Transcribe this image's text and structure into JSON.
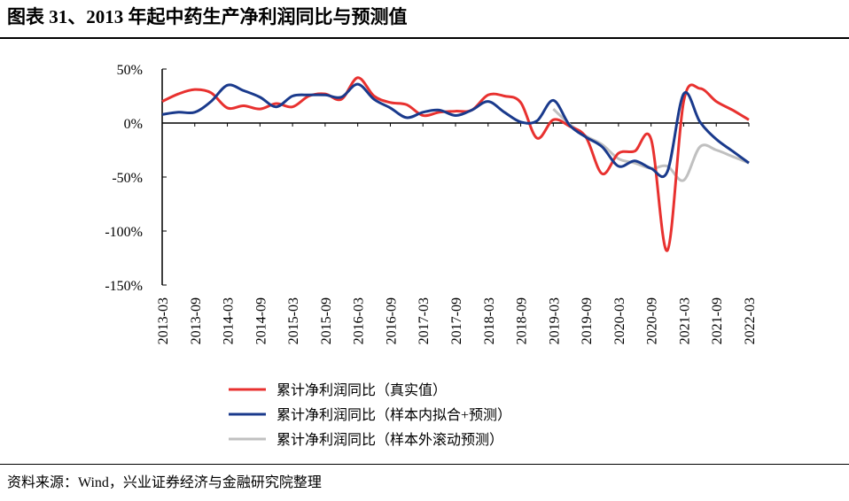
{
  "chart_data": {
    "type": "line",
    "title": "图表 31、2013 年起中药生产净利润同比与预测值",
    "source": "资料来源：Wind，兴业证券经济与金融研究院整理",
    "categories": [
      "2013-03",
      null,
      "2013-09",
      null,
      "2014-03",
      null,
      "2014-09",
      null,
      "2015-03",
      null,
      "2015-09",
      null,
      "2016-03",
      null,
      "2016-09",
      null,
      "2017-03",
      null,
      "2017-09",
      null,
      "2018-03",
      null,
      "2018-09",
      null,
      "2019-03",
      null,
      "2019-09",
      null,
      "2020-03",
      null,
      "2020-09",
      null,
      "2021-03",
      null,
      "2021-09",
      null,
      "2022-03"
    ],
    "series": [
      {
        "name": "累计净利润同比（真实值）",
        "color": "#e8312f",
        "values": [
          20,
          27,
          31,
          28,
          14,
          16,
          13,
          18,
          15,
          25,
          27,
          22,
          42,
          25,
          19,
          17,
          7,
          10,
          11,
          12,
          26,
          25,
          19,
          -14,
          3,
          -3,
          -13,
          -47,
          -28,
          -26,
          -15,
          -118,
          20,
          32,
          20,
          12,
          3
        ]
      },
      {
        "name": "累计净利润同比（样本内拟合+预测）",
        "color": "#1a3a8c",
        "values": [
          8,
          10,
          10,
          20,
          35,
          30,
          24,
          15,
          25,
          26,
          26,
          24,
          36,
          22,
          14,
          5,
          10,
          12,
          7,
          12,
          20,
          10,
          1,
          2,
          21,
          -2,
          -13,
          -22,
          -40,
          -35,
          -42,
          -45,
          27,
          1,
          -15,
          -26,
          -37
        ]
      },
      {
        "name": "累计净利润同比（样本外滚动预测）",
        "color": "#c0c0c0",
        "values": [
          null,
          null,
          null,
          null,
          null,
          null,
          null,
          null,
          null,
          null,
          null,
          null,
          null,
          null,
          null,
          null,
          null,
          null,
          null,
          null,
          null,
          null,
          null,
          null,
          13,
          -1,
          -12,
          -20,
          -33,
          -37,
          -42,
          -40,
          -53,
          -22,
          -25,
          -31,
          -37
        ]
      }
    ],
    "ylim": [
      -150,
      50
    ],
    "yticks": [
      {
        "value": 50,
        "label": "50%"
      },
      {
        "value": 0,
        "label": "0%"
      },
      {
        "value": -50,
        "label": "-50%"
      },
      {
        "value": -100,
        "label": "-100%"
      },
      {
        "value": -150,
        "label": "-150%"
      }
    ]
  }
}
